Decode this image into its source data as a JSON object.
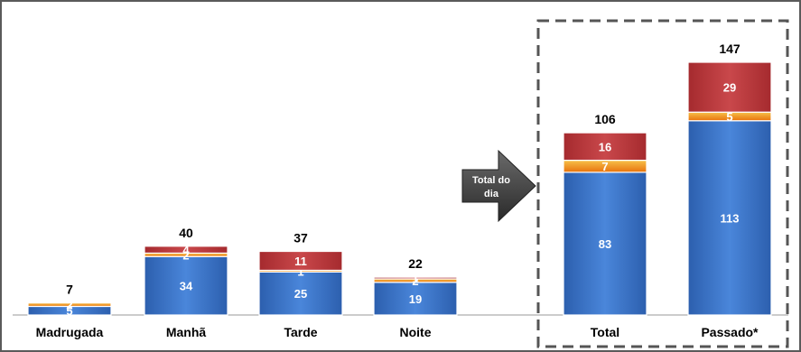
{
  "chart_data": {
    "type": "bar",
    "stacked": true,
    "categories": [
      "Madrugada",
      "Manhã",
      "Tarde",
      "Noite",
      "Total",
      "Passado*"
    ],
    "series": [
      {
        "values": [
          5,
          34,
          25,
          19,
          83,
          113
        ],
        "color": "#3b73c8"
      },
      {
        "values": [
          2,
          2,
          1,
          2,
          7,
          5
        ],
        "color": "#f08a1c"
      },
      {
        "values": [
          0,
          4,
          11,
          1,
          16,
          29
        ],
        "color": "#b8363a"
      }
    ],
    "totals": [
      7,
      40,
      37,
      22,
      106,
      147
    ],
    "arrow_label": "Total do dia",
    "grid": false,
    "ylim": [
      0,
      147
    ]
  }
}
